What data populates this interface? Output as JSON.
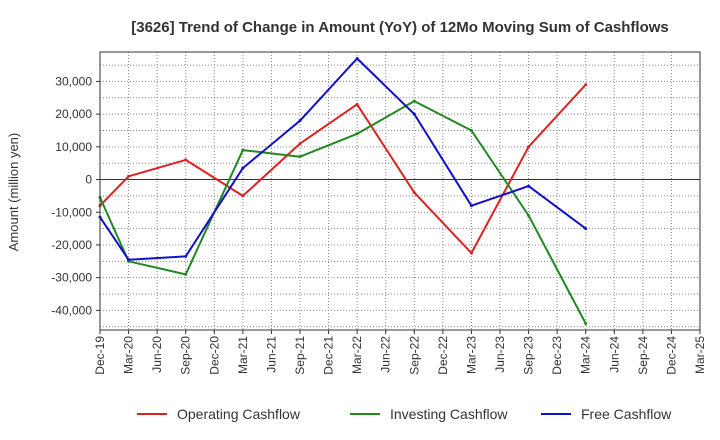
{
  "chart_data": {
    "type": "line",
    "title": "[3626]  Trend of Change in Amount (YoY) of 12Mo Moving Sum of Cashflows",
    "xlabel": "",
    "ylabel": "Amount (million yen)",
    "ylim": [
      -46000,
      39000
    ],
    "yticks": [
      30000,
      20000,
      10000,
      0,
      -10000,
      -20000,
      -30000,
      -40000
    ],
    "ytick_labels": [
      "30,000",
      "20,000",
      "10,000",
      "0",
      "-10,000",
      "-20,000",
      "-30,000",
      "-40,000"
    ],
    "categories": [
      "Dec-19",
      "Mar-20",
      "Jun-20",
      "Sep-20",
      "Dec-20",
      "Mar-21",
      "Jun-21",
      "Sep-21",
      "Dec-21",
      "Mar-22",
      "Jun-22",
      "Sep-22",
      "Dec-22",
      "Mar-23",
      "Jun-23",
      "Sep-23",
      "Dec-23",
      "Mar-24",
      "Jun-24",
      "Sep-24",
      "Dec-24",
      "Mar-25"
    ],
    "grid": true,
    "legend_position": "bottom",
    "series": [
      {
        "name": "Operating Cashflow",
        "color": "#dd2222",
        "values": [
          -8000,
          1000,
          null,
          6000,
          null,
          -5000,
          null,
          11000,
          null,
          23000,
          null,
          -4000,
          null,
          -22500,
          null,
          10000,
          null,
          29000,
          null,
          null,
          null,
          null
        ]
      },
      {
        "name": "Investing Cashflow",
        "color": "#228822",
        "values": [
          -5500,
          -25000,
          null,
          -29000,
          null,
          9000,
          null,
          7000,
          null,
          14000,
          null,
          24000,
          null,
          15000,
          null,
          -11000,
          null,
          -44000,
          null,
          null,
          null,
          null
        ]
      },
      {
        "name": "Free Cashflow",
        "color": "#1111cc",
        "values": [
          -11500,
          -24500,
          null,
          -23500,
          null,
          3500,
          null,
          18000,
          null,
          37000,
          null,
          20000,
          null,
          -8000,
          null,
          -2000,
          null,
          -15000,
          null,
          null,
          null,
          null
        ]
      }
    ]
  }
}
